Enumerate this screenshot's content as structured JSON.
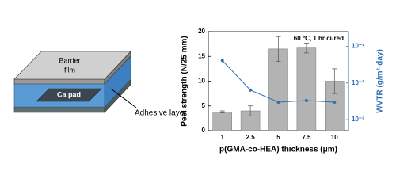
{
  "diagram": {
    "labels": [
      "Barrier",
      "film",
      "Ca pad",
      "Adhesive layer"
    ]
  },
  "chart_data": {
    "type": "bar",
    "annotation": "60 ℃, 1 hr cured",
    "xlabel": "p(GMA-co-HEA) thickness (μm)",
    "ylabel": "Peel strength (N/25 mm)",
    "y2label": "WVTR (g/m²·day)",
    "categories": [
      "1",
      "2.5",
      "5",
      "7.5",
      "10"
    ],
    "ylim": [
      0,
      20
    ],
    "yticks": [
      0,
      5,
      10,
      15,
      20
    ],
    "y2lim": [
      0.0005,
      0.25
    ],
    "y2scale": "log",
    "y2ticks": [
      {
        "value": 0.001,
        "label": "10⁻³"
      },
      {
        "value": 0.01,
        "label": "10⁻²"
      },
      {
        "value": 0.1,
        "label": "10⁻¹"
      }
    ],
    "series": [
      {
        "type": "bar",
        "color": "#b3b3b3",
        "values": [
          3.8,
          4.0,
          16.5,
          16.7,
          10.0
        ],
        "errors": [
          0.2,
          1.0,
          2.5,
          1.0,
          2.5
        ]
      },
      {
        "type": "line",
        "axis": "y2",
        "color": "#2e6fb5",
        "values": [
          0.041,
          0.0064,
          0.003,
          0.0033,
          0.003
        ]
      }
    ]
  }
}
